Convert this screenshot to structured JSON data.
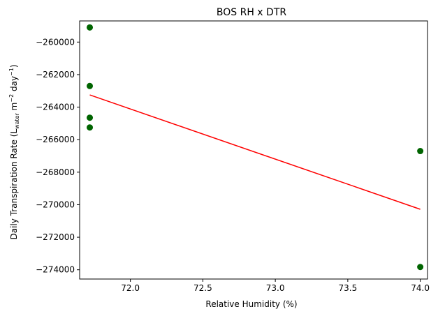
{
  "chart_data": {
    "type": "scatter",
    "title": "BOS RH x DTR",
    "xlabel": "Relative Humidity (%)",
    "ylabel": {
      "prefix": "Daily Transpiration Rate (L",
      "sub": "water",
      "mid": " m",
      "sup1": "−2",
      "mid2": " day",
      "sup2": "−1",
      "suffix": ")"
    },
    "xlim": [
      71.65,
      74.05
    ],
    "ylim": [
      -274570,
      -258700
    ],
    "xticks": [
      72.0,
      72.5,
      73.0,
      73.5,
      74.0
    ],
    "xtick_labels": [
      "72.0",
      "72.5",
      "73.0",
      "73.5",
      "74.0"
    ],
    "yticks": [
      -260000,
      -262000,
      -264000,
      -266000,
      -268000,
      -270000,
      -272000,
      -274000
    ],
    "ytick_labels": [
      "−260000",
      "−262000",
      "−264000",
      "−266000",
      "−268000",
      "−270000",
      "−272000",
      "−274000"
    ],
    "grid": false,
    "series": [
      {
        "kind": "points",
        "color": "#006400",
        "x": [
          71.72,
          71.72,
          71.72,
          71.72,
          74.0,
          74.0
        ],
        "y": [
          -259100,
          -262700,
          -264650,
          -265250,
          -266700,
          -273830
        ]
      },
      {
        "kind": "fit-line",
        "color": "#ff0000",
        "x": [
          71.72,
          74.0
        ],
        "y": [
          -263250,
          -270280
        ]
      }
    ]
  }
}
